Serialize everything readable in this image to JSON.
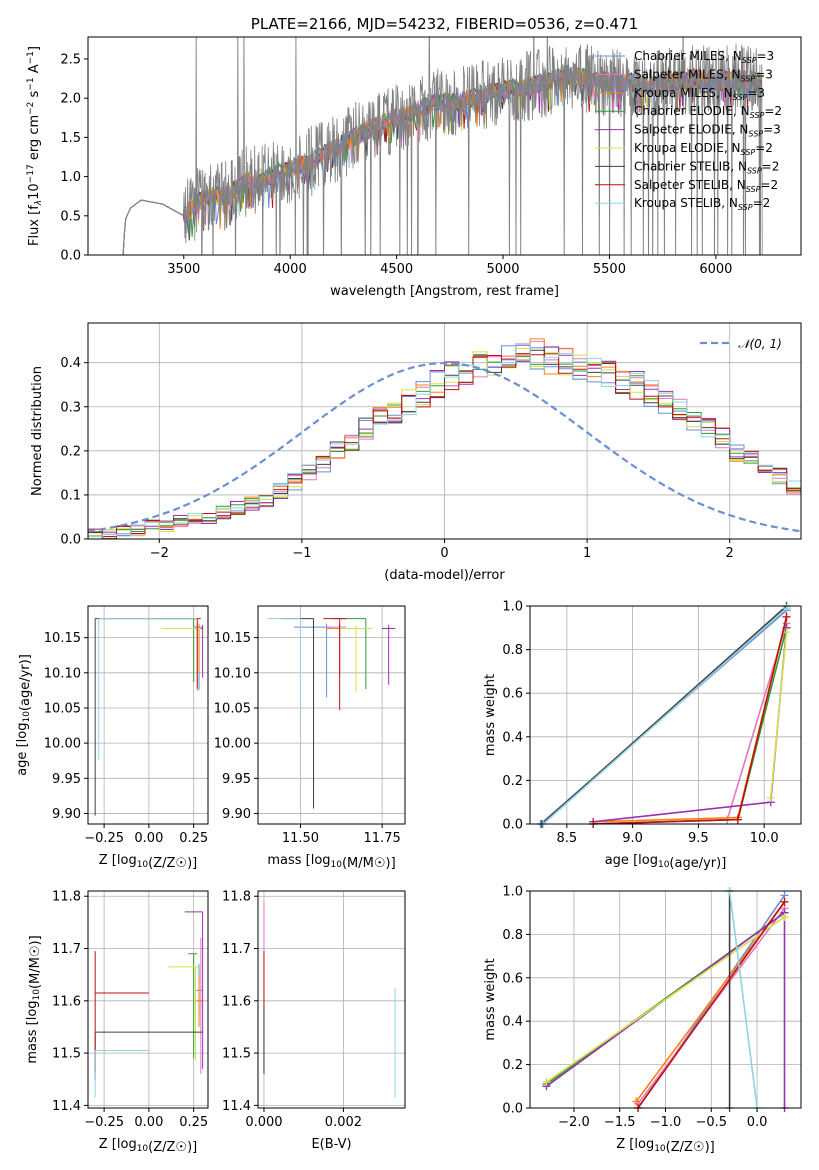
{
  "figure": {
    "title": "PLATE=2166, MJD=54232, FIBERID=0536, z=0.471"
  },
  "models": [
    {
      "name": "Chabrier MILES, N<sub>SSP</sub>=3",
      "label": "Chabrier MILES, N",
      "sub": "SSP",
      "tail": "=3",
      "color": "#6a8fd6"
    },
    {
      "name": "Salpeter MILES",
      "label": "Salpeter MILES, N",
      "sub": "SSP",
      "tail": "=3",
      "color": "#e377c2"
    },
    {
      "name": "Kroupa MILES",
      "label": "Kroupa MILES, N",
      "sub": "SSP",
      "tail": "=3",
      "color": "#ff7f0e"
    },
    {
      "name": "Chabrier ELODIE",
      "label": "Chabrier ELODIE, N",
      "sub": "SSP",
      "tail": "=2",
      "color": "#2ca02c"
    },
    {
      "name": "Salpeter ELODIE",
      "label": "Salpeter ELODIE, N",
      "sub": "SSP",
      "tail": "=3",
      "color": "#9b30b0"
    },
    {
      "name": "Kroupa ELODIE",
      "label": "Kroupa ELODIE, N",
      "sub": "SSP",
      "tail": "=2",
      "color": "#d4e04a"
    },
    {
      "name": "Chabrier STELIB",
      "label": "Chabrier STELIB, N",
      "sub": "SSP",
      "tail": "=2",
      "color": "#404040"
    },
    {
      "name": "Salpeter STELIB",
      "label": "Salpeter STELIB, N",
      "sub": "SSP",
      "tail": "=2",
      "color": "#c01010"
    },
    {
      "name": "Kroupa STELIB",
      "label": "Kroupa STELIB, N",
      "sub": "SSP",
      "tail": "=2",
      "color": "#8fd3e0"
    }
  ],
  "chart_data": [
    {
      "id": "spectrum",
      "type": "line",
      "title": "PLATE=2166, MJD=54232, FIBERID=0536, z=0.471",
      "xlabel": "wavelength [Angstrom, rest frame]",
      "ylabel_main": "Flux [f",
      "ylabel_tail": "10",
      "ylabel_unit": " erg cm",
      "xlim": [
        3050,
        6400
      ],
      "ylim": [
        0,
        2.78
      ],
      "xticks": [
        3500,
        4000,
        4500,
        5000,
        5500,
        6000
      ],
      "yticks": [
        0.0,
        0.5,
        1.0,
        1.5,
        2.0,
        2.5
      ],
      "data_x_start": 3215,
      "data_x_end": 6220,
      "continuum": [
        [
          3215,
          0.0
        ],
        [
          3225,
          0.45
        ],
        [
          3250,
          0.6
        ],
        [
          3300,
          0.7
        ],
        [
          3400,
          0.65
        ],
        [
          3500,
          0.5
        ],
        [
          3600,
          0.75
        ],
        [
          3700,
          0.75
        ],
        [
          3800,
          0.95
        ],
        [
          3900,
          1.0
        ],
        [
          4000,
          1.1
        ],
        [
          4100,
          1.2
        ],
        [
          4200,
          1.35
        ],
        [
          4300,
          1.5
        ],
        [
          4400,
          1.65
        ],
        [
          4500,
          1.75
        ],
        [
          4600,
          1.85
        ],
        [
          4700,
          1.95
        ],
        [
          4800,
          1.95
        ],
        [
          4900,
          2.05
        ],
        [
          5000,
          2.1
        ],
        [
          5100,
          2.15
        ],
        [
          5200,
          2.2
        ],
        [
          5300,
          2.3
        ],
        [
          5400,
          2.25
        ],
        [
          5500,
          2.2
        ],
        [
          5600,
          2.2
        ],
        [
          5700,
          2.15
        ],
        [
          5800,
          2.2
        ],
        [
          5900,
          2.25
        ],
        [
          6000,
          2.2
        ],
        [
          6100,
          2.25
        ],
        [
          6220,
          2.2
        ]
      ]
    },
    {
      "id": "residuals",
      "type": "histogram",
      "xlabel": "(data-model)/error",
      "ylabel": "Normed distribution",
      "legend_label": "𝒩(0, 1)",
      "xlim": [
        -2.5,
        2.5
      ],
      "ylim": [
        0,
        0.49
      ],
      "xticks": [
        -2,
        -1,
        0,
        1,
        2
      ],
      "yticks": [
        0.0,
        0.1,
        0.2,
        0.3,
        0.4
      ],
      "bin_edges_start": -2.5,
      "bin_width": 0.1,
      "base_values": [
        0.01,
        0.01,
        0.02,
        0.02,
        0.03,
        0.03,
        0.04,
        0.05,
        0.05,
        0.06,
        0.07,
        0.08,
        0.09,
        0.11,
        0.13,
        0.15,
        0.17,
        0.2,
        0.22,
        0.25,
        0.27,
        0.29,
        0.31,
        0.33,
        0.35,
        0.37,
        0.38,
        0.39,
        0.4,
        0.41,
        0.41,
        0.42,
        0.41,
        0.4,
        0.39,
        0.38,
        0.37,
        0.36,
        0.35,
        0.33,
        0.31,
        0.29,
        0.27,
        0.25,
        0.23,
        0.2,
        0.18,
        0.16,
        0.14,
        0.12,
        0.1,
        0.09,
        0.08,
        0.07,
        0.06,
        0.05,
        0.05,
        0.04,
        0.04,
        0.04
      ]
    },
    {
      "id": "age-vs-Z",
      "type": "scatter",
      "xlabel": "Z [log",
      "ylabel": "age  [log",
      "xlim": [
        -0.34,
        0.33
      ],
      "ylim": [
        9.885,
        10.195
      ],
      "xticks": [
        -0.25,
        0.0,
        0.25
      ],
      "yticks": [
        9.9,
        9.95,
        10.0,
        10.05,
        10.1,
        10.15
      ],
      "points": [
        {
          "m": 0,
          "x": 0.28,
          "y": 10.165,
          "xe": [
            0.02,
            0.02
          ],
          "ye": [
            0.09,
            0.005
          ]
        },
        {
          "m": 1,
          "x": 0.27,
          "y": 10.165,
          "xe": [
            0.02,
            0.02
          ],
          "ye": [
            0.08,
            0.005
          ]
        },
        {
          "m": 2,
          "x": 0.28,
          "y": 10.163,
          "xe": [
            0.02,
            0.02
          ],
          "ye": [
            0.06,
            0.005
          ]
        },
        {
          "m": 3,
          "x": 0.25,
          "y": 10.177,
          "xe": [
            0.2,
            0.02
          ],
          "ye": [
            0.09,
            0.0
          ]
        },
        {
          "m": 4,
          "x": 0.3,
          "y": 10.163,
          "xe": [
            0.02,
            0.0
          ],
          "ye": [
            0.07,
            0.005
          ]
        },
        {
          "m": 5,
          "x": 0.27,
          "y": 10.163,
          "xe": [
            0.2,
            0.02
          ],
          "ye": [
            0.09,
            0.005
          ]
        },
        {
          "m": 6,
          "x": -0.3,
          "y": 10.177,
          "xe": [
            0.0,
            0.55
          ],
          "ye": [
            0.28,
            0.0
          ]
        },
        {
          "m": 7,
          "x": 0.27,
          "y": 10.177,
          "xe": [
            0.02,
            0.02
          ],
          "ye": [
            0.1,
            0.0
          ]
        },
        {
          "m": 8,
          "x": -0.28,
          "y": 10.177,
          "xe": [
            0.0,
            0.55
          ],
          "ye": [
            0.2,
            0.0
          ]
        }
      ]
    },
    {
      "id": "age-vs-mass",
      "type": "scatter",
      "xlabel": "mass [log",
      "xlim": [
        11.37,
        11.82
      ],
      "ylim": [
        9.885,
        10.195
      ],
      "xticks": [
        11.5,
        11.75
      ],
      "yticks": [
        9.9,
        9.95,
        10.0,
        10.05,
        10.1,
        10.15
      ],
      "points": [
        {
          "m": 0,
          "x": 11.58,
          "y": 10.165,
          "xe": [
            0.1,
            0.02
          ],
          "ye": [
            0.1,
            0.005
          ]
        },
        {
          "m": 1,
          "x": 11.62,
          "y": 10.165,
          "xe": [
            0.05,
            0.02
          ],
          "ye": [
            0.07,
            0.005
          ]
        },
        {
          "m": 2,
          "x": 11.62,
          "y": 10.163,
          "xe": [
            0.04,
            0.04
          ],
          "ye": [
            0.06,
            0.005
          ]
        },
        {
          "m": 3,
          "x": 11.7,
          "y": 10.177,
          "xe": [
            0.1,
            0.0
          ],
          "ye": [
            0.1,
            0.0
          ]
        },
        {
          "m": 4,
          "x": 11.77,
          "y": 10.163,
          "xe": [
            0.02,
            0.02
          ],
          "ye": [
            0.08,
            0.005
          ]
        },
        {
          "m": 5,
          "x": 11.67,
          "y": 10.163,
          "xe": [
            0.05,
            0.05
          ],
          "ye": [
            0.09,
            0.005
          ]
        },
        {
          "m": 6,
          "x": 11.54,
          "y": 10.177,
          "xe": [
            0.1,
            0.0
          ],
          "ye": [
            0.27,
            0.0
          ]
        },
        {
          "m": 7,
          "x": 11.62,
          "y": 10.177,
          "xe": [
            0.05,
            0.02
          ],
          "ye": [
            0.13,
            0.0
          ]
        },
        {
          "m": 8,
          "x": 11.5,
          "y": 10.177,
          "xe": [
            0.1,
            0.0
          ],
          "ye": [
            0.13,
            0.0
          ]
        }
      ]
    },
    {
      "id": "weight-vs-age",
      "type": "line",
      "xlabel": "age  [log",
      "ylabel": "mass weight",
      "xlim": [
        8.22,
        10.28
      ],
      "ylim": [
        0,
        1.0
      ],
      "xticks": [
        8.5,
        9.0,
        9.5,
        10.0
      ],
      "yticks": [
        0.0,
        0.2,
        0.4,
        0.6,
        0.8,
        1.0
      ],
      "lines": [
        {
          "m": 0,
          "pts": [
            [
              8.3,
              0.0
            ],
            [
              10.17,
              0.98
            ]
          ]
        },
        {
          "m": 1,
          "pts": [
            [
              8.7,
              0.0
            ],
            [
              9.72,
              0.02
            ],
            [
              10.17,
              0.92
            ]
          ]
        },
        {
          "m": 2,
          "pts": [
            [
              8.7,
              0.01
            ],
            [
              9.8,
              0.03
            ],
            [
              10.17,
              0.95
            ]
          ]
        },
        {
          "m": 3,
          "pts": [
            [
              8.7,
              0.0
            ],
            [
              9.8,
              0.02
            ],
            [
              10.17,
              0.9
            ]
          ]
        },
        {
          "m": 4,
          "pts": [
            [
              8.7,
              0.01
            ],
            [
              10.05,
              0.1
            ],
            [
              10.17,
              0.9
            ]
          ]
        },
        {
          "m": 5,
          "pts": [
            [
              10.05,
              0.12
            ],
            [
              10.17,
              0.88
            ]
          ]
        },
        {
          "m": 6,
          "pts": [
            [
              8.31,
              0.0
            ],
            [
              10.17,
              1.0
            ]
          ]
        },
        {
          "m": 7,
          "pts": [
            [
              8.7,
              0.0
            ],
            [
              9.8,
              0.02
            ],
            [
              10.17,
              0.95
            ]
          ]
        },
        {
          "m": 8,
          "pts": [
            [
              8.32,
              0.0
            ],
            [
              10.17,
              0.99
            ]
          ]
        }
      ]
    },
    {
      "id": "mass-vs-Z",
      "type": "scatter",
      "xlabel": "Z [log",
      "ylabel": "mass [log",
      "xlim": [
        -0.34,
        0.33
      ],
      "ylim": [
        11.395,
        11.81
      ],
      "xticks": [
        -0.25,
        0.0,
        0.25
      ],
      "yticks": [
        11.4,
        11.5,
        11.6,
        11.7,
        11.8
      ],
      "points": [
        {
          "m": 0,
          "x": 0.28,
          "y": 11.62,
          "xe": [
            0.02,
            0.02
          ],
          "ye": [
            0.05,
            0.05
          ]
        },
        {
          "m": 1,
          "x": 0.29,
          "y": 11.6,
          "xe": [
            0.02,
            0.0
          ],
          "ye": [
            0.14,
            0.12
          ]
        },
        {
          "m": 2,
          "x": 0.28,
          "y": 11.6,
          "xe": [
            0.02,
            0.02
          ],
          "ye": [
            0.05,
            0.05
          ]
        },
        {
          "m": 3,
          "x": 0.25,
          "y": 11.69,
          "xe": [
            0.03,
            0.02
          ],
          "ye": [
            0.2,
            0.0
          ]
        },
        {
          "m": 4,
          "x": 0.3,
          "y": 11.77,
          "xe": [
            0.1,
            0.0
          ],
          "ye": [
            0.3,
            0.0
          ]
        },
        {
          "m": 5,
          "x": 0.26,
          "y": 11.665,
          "xe": [
            0.15,
            0.03
          ],
          "ye": [
            0.18,
            0.0
          ]
        },
        {
          "m": 6,
          "x": -0.3,
          "y": 11.54,
          "xe": [
            0.0,
            0.6
          ],
          "ye": [
            0.09,
            0.0
          ]
        },
        {
          "m": 7,
          "x": -0.3,
          "y": 11.615,
          "xe": [
            0.0,
            0.3
          ],
          "ye": [
            0.15,
            0.08
          ]
        },
        {
          "m": 8,
          "x": -0.3,
          "y": 11.505,
          "xe": [
            0.0,
            0.3
          ],
          "ye": [
            0.09,
            0.0
          ]
        }
      ]
    },
    {
      "id": "mass-vs-ebv",
      "type": "scatter",
      "xlabel": "E(B-V)",
      "xlim": [
        -0.00015,
        0.00355
      ],
      "ylim": [
        11.395,
        11.81
      ],
      "xticks": [
        0.0,
        0.002
      ],
      "yticks": [
        11.4,
        11.5,
        11.6,
        11.7,
        11.8
      ],
      "points": [
        {
          "m": 1,
          "x": 0.0,
          "y": 11.6,
          "xe": [
            0,
            0
          ],
          "ye": [
            0.14,
            0.19
          ]
        },
        {
          "m": 7,
          "x": 0.0,
          "y": 11.615,
          "xe": [
            0,
            0
          ],
          "ye": [
            0.15,
            0.08
          ]
        },
        {
          "m": 6,
          "x": 0.0,
          "y": 11.54,
          "xe": [
            0,
            0
          ],
          "ye": [
            0.08,
            0.05
          ]
        },
        {
          "m": 8,
          "x": 0.0033,
          "y": 11.505,
          "xe": [
            0,
            0
          ],
          "ye": [
            0.09,
            0.12
          ]
        }
      ]
    },
    {
      "id": "weight-vs-Z",
      "type": "line",
      "xlabel": "Z [log",
      "ylabel": "mass weight",
      "xlim": [
        -2.48,
        0.48
      ],
      "ylim": [
        0,
        1.0
      ],
      "xticks": [
        -2.0,
        -1.5,
        -1.0,
        -0.5,
        0.0
      ],
      "yticks": [
        0.0,
        0.2,
        0.4,
        0.6,
        0.8,
        1.0
      ],
      "lines": [
        {
          "m": 0,
          "pts": [
            [
              -1.3,
              0.0
            ],
            [
              0.3,
              0.98
            ]
          ]
        },
        {
          "m": 1,
          "pts": [
            [
              -1.3,
              0.02
            ],
            [
              0.3,
              0.92
            ]
          ]
        },
        {
          "m": 2,
          "pts": [
            [
              -1.32,
              0.03
            ],
            [
              0.3,
              0.95
            ]
          ]
        },
        {
          "m": 3,
          "pts": [
            [
              -2.3,
              0.11
            ],
            [
              0.3,
              0.9
            ]
          ]
        },
        {
          "m": 4,
          "pts": [
            [
              -2.3,
              0.1
            ],
            [
              0.3,
              0.9
            ],
            [
              0.3,
              0.0
            ]
          ]
        },
        {
          "m": 5,
          "pts": [
            [
              -2.3,
              0.12
            ],
            [
              0.3,
              0.88
            ]
          ]
        },
        {
          "m": 6,
          "pts": [
            [
              -0.3,
              0.0
            ],
            [
              -0.3,
              1.0
            ]
          ]
        },
        {
          "m": 7,
          "pts": [
            [
              -1.3,
              0.0
            ],
            [
              0.3,
              0.95
            ]
          ]
        },
        {
          "m": 8,
          "pts": [
            [
              -0.3,
              1.0
            ],
            [
              0.0,
              0.0
            ]
          ]
        }
      ]
    }
  ]
}
